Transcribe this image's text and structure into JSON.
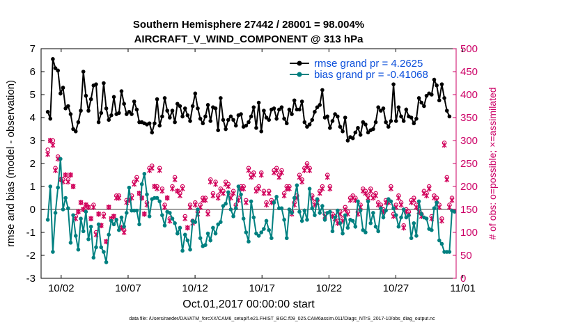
{
  "chart_data": {
    "type": "line",
    "title": "Southern Hemisphere 27442 / 28001 = 98.004%",
    "subtitle": "AIRCRAFT_V_WIND_COMPONENT @ 313 hPa",
    "xlabel": "Oct.01,2017 00:00:00 start",
    "ylabel": "rmse and bias (model - observation)",
    "ylabel_right": "# of obs: o=possible; ×=assimilated",
    "footnote": "data file: /Users/raeder/DAI/ATM_forcXX/CAM6_setup/f.e21.FHIST_BGC.f09_025.CAM6assim.011/Diags_NTrS_2017-10/obs_diag_output.nc",
    "xlim": [
      0.5,
      31.5
    ],
    "ylim": [
      -3,
      7
    ],
    "ylim_right": [
      0,
      500
    ],
    "x_tick_values": [
      2,
      7,
      12,
      17,
      22,
      27,
      32
    ],
    "x_tick_labels": [
      "10/02",
      "10/07",
      "10/12",
      "10/17",
      "10/22",
      "10/27",
      "11/01"
    ],
    "y_ticks": [
      -3,
      -2,
      -1,
      0,
      1,
      2,
      3,
      4,
      5,
      6,
      7
    ],
    "y_ticks_right": [
      0,
      50,
      100,
      150,
      200,
      250,
      300,
      350,
      400,
      450,
      500
    ],
    "series": [
      {
        "name": "rmse",
        "legend": "rmse grand pr = 4.2625",
        "color": "#000000",
        "values": [
          4.25,
          3.95,
          6.55,
          6.15,
          6.05,
          5.05,
          5.3,
          4.4,
          4.5,
          4.15,
          3.5,
          3.4,
          3.8,
          4.3,
          6.0,
          4.95,
          4.3,
          4.8,
          5.4,
          5.45,
          3.8,
          4.2,
          5.5,
          4.4,
          3.9,
          4.1,
          4.9,
          4.15,
          4.2,
          5.15,
          4.6,
          4.15,
          4.25,
          4.15,
          4.7,
          4.35,
          3.8,
          3.8,
          3.75,
          3.7,
          3.75,
          3.35,
          3.75,
          4.8,
          3.65,
          4.05,
          4.85,
          4.3,
          4.0,
          4.3,
          3.8,
          4.6,
          4.5,
          4.05,
          4.4,
          4.1,
          3.85,
          4.5,
          5.05,
          4.4,
          3.95,
          3.75,
          4.05,
          4.55,
          3.85,
          4.45,
          4.4,
          3.45,
          4.85,
          3.9,
          3.5,
          3.9,
          4.05,
          3.9,
          3.65,
          4.1,
          4.15,
          3.6,
          3.65,
          3.8,
          4.05,
          4.45,
          3.55,
          4.65,
          3.4,
          4.3,
          4.0,
          3.9,
          4.35,
          4.4,
          3.95,
          4.35,
          4.45,
          3.95,
          3.75,
          4.35,
          4.15,
          4.75,
          4.35,
          4.35,
          4.7,
          3.8,
          3.6,
          3.7,
          3.9,
          4.25,
          4.45,
          4.55,
          5.2,
          4.0,
          4.05,
          3.55,
          3.85,
          4.15,
          4.05,
          3.6,
          3.4,
          4.0,
          3.0,
          3.15,
          3.1,
          3.35,
          3.55,
          3.25,
          3.8,
          3.7,
          3.35,
          3.45,
          3.5,
          3.8,
          4.45,
          4.3,
          4.4,
          3.8,
          3.6,
          3.85,
          5.45,
          3.85,
          4.45,
          4.05,
          3.85,
          4.35,
          4.05,
          4.0,
          3.75,
          3.95,
          4.85,
          4.65,
          4.5,
          4.95,
          5.05,
          5.0,
          5.65,
          5.4,
          4.75,
          5.45,
          4.85,
          4.3,
          4.05
        ]
      },
      {
        "name": "bias",
        "legend": "bias grand pr = -0.41068",
        "color": "#008080",
        "values": [
          -0.45,
          1.0,
          -1.85,
          -0.15,
          0.95,
          2.2,
          0.0,
          0.5,
          0.05,
          -1.45,
          -0.25,
          -1.15,
          -1.75,
          -0.4,
          -0.95,
          -0.1,
          -1.3,
          -0.75,
          -2.1,
          -1.65,
          -0.65,
          -1.65,
          -1.85,
          -2.3,
          -1.1,
          -0.5,
          -0.65,
          -0.45,
          -0.9,
          -0.35,
          -0.75,
          -0.15,
          0.95,
          -0.05,
          -0.05,
          -0.05,
          -0.65,
          1.1,
          1.55,
          0.65,
          -0.3,
          0.45,
          0.5,
          0.5,
          0.35,
          -0.25,
          -0.7,
          -0.1,
          -0.15,
          -0.4,
          -0.6,
          -1.05,
          -0.8,
          -1.8,
          -1.1,
          -1.35,
          -1.75,
          -0.5,
          -0.55,
          0.0,
          -1.25,
          -1.6,
          -1.55,
          -1.05,
          -1.35,
          -0.8,
          -1.05,
          -0.65,
          -0.55,
          0.15,
          0.25,
          0.75,
          0.0,
          -0.3,
          0.05,
          1.0,
          0.65,
          -0.4,
          -1.0,
          -1.4,
          0.35,
          -0.35,
          -1.05,
          -1.15,
          -1.0,
          -0.85,
          -0.5,
          -0.9,
          -1.25,
          0.3,
          0.55,
          0.05,
          0.05,
          -0.45,
          -1.25,
          0.0,
          -0.15,
          0.5,
          1.05,
          -0.1,
          -0.5,
          -0.05,
          -0.45,
          0.9,
          0.05,
          -0.25,
          0.45,
          -0.15,
          0.15,
          -0.45,
          -0.15,
          -0.1,
          -0.95,
          -0.35,
          -0.05,
          -0.6,
          -1.05,
          -0.25,
          -0.8,
          -0.45,
          -0.5,
          -0.75,
          0.35,
          -0.05,
          -0.9,
          -1.0,
          0.35,
          -0.6,
          -0.15,
          -0.75,
          -0.95,
          0.05,
          -0.35,
          -0.05,
          0.45,
          0.35,
          0.05,
          -0.25,
          -0.75,
          -0.35,
          0.0,
          -0.35,
          -0.25,
          -1.25,
          -0.6,
          -1.15,
          0.35,
          -0.2,
          -0.35,
          -0.4,
          -0.85,
          -0.9,
          0.05,
          0.3,
          -1.35,
          -1.5,
          -1.85,
          -1.85,
          -1.85,
          -0.05,
          -0.1
        ]
      }
    ],
    "obs_possible": [
      280,
      300,
      300,
      240,
      265,
      215,
      215,
      225,
      215,
      225,
      200,
      135,
      145,
      165,
      150,
      160,
      155,
      130,
      160,
      100,
      140,
      115,
      140,
      80,
      155,
      130,
      135,
      180,
      180,
      110,
      105,
      170,
      170,
      180,
      210,
      220,
      185,
      175,
      140,
      165,
      240,
      245,
      200,
      200,
      240,
      195,
      160,
      175,
      130,
      200,
      220,
      190,
      185,
      200,
      135,
      110,
      160,
      125,
      165,
      145,
      160,
      175,
      175,
      145,
      215,
      185,
      210,
      180,
      195,
      190,
      210,
      205,
      180,
      190,
      160,
      175,
      200,
      200,
      170,
      240,
      225,
      230,
      195,
      200,
      230,
      190,
      165,
      190,
      170,
      235,
      240,
      225,
      235,
      185,
      200,
      200,
      145,
      165,
      180,
      225,
      215,
      240,
      250,
      240,
      180,
      165,
      170,
      190,
      200,
      140,
      225,
      200,
      140,
      135,
      125,
      145,
      130,
      155,
      145,
      175,
      180,
      175,
      145,
      160,
      195,
      190,
      180,
      195,
      180,
      185,
      165,
      160,
      150,
      170,
      170,
      200,
      140,
      160,
      180,
      165,
      115,
      150,
      145,
      170,
      175,
      160,
      150,
      140,
      190,
      185,
      200,
      135,
      180,
      175,
      160,
      130,
      295,
      220,
      160,
      175
    ],
    "obs_assimilated": [
      270,
      300,
      290,
      235,
      260,
      215,
      210,
      225,
      210,
      225,
      200,
      130,
      145,
      165,
      150,
      160,
      155,
      130,
      155,
      95,
      140,
      115,
      135,
      80,
      155,
      130,
      135,
      175,
      175,
      110,
      100,
      165,
      170,
      175,
      205,
      215,
      185,
      175,
      140,
      160,
      235,
      240,
      200,
      195,
      235,
      190,
      155,
      175,
      125,
      195,
      215,
      190,
      180,
      195,
      130,
      110,
      155,
      120,
      160,
      140,
      155,
      170,
      170,
      140,
      210,
      180,
      205,
      175,
      190,
      185,
      205,
      200,
      175,
      185,
      155,
      170,
      195,
      195,
      165,
      235,
      220,
      225,
      190,
      195,
      225,
      185,
      160,
      185,
      165,
      230,
      235,
      220,
      230,
      180,
      195,
      195,
      140,
      160,
      175,
      220,
      210,
      235,
      245,
      235,
      175,
      160,
      165,
      185,
      195,
      135,
      220,
      195,
      135,
      130,
      120,
      140,
      125,
      150,
      140,
      170,
      175,
      170,
      140,
      155,
      190,
      185,
      175,
      190,
      175,
      180,
      160,
      155,
      145,
      165,
      165,
      195,
      135,
      155,
      175,
      160,
      110,
      145,
      140,
      165,
      170,
      155,
      145,
      135,
      185,
      180,
      195,
      130,
      175,
      170,
      155,
      125,
      290,
      215,
      155,
      170
    ]
  }
}
